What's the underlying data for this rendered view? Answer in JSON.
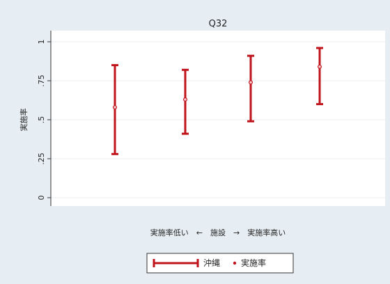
{
  "chart_data": {
    "type": "errorbar",
    "title": "Q32",
    "ylabel": "実施率",
    "xlabel": "実施率低い　←　施設　→　実施率高い",
    "ylim": [
      0,
      1
    ],
    "yticks": [
      {
        "value": 0,
        "label": "0"
      },
      {
        "value": 0.25,
        "label": ".25"
      },
      {
        "value": 0.5,
        "label": ".5"
      },
      {
        "value": 0.75,
        "label": ".75"
      },
      {
        "value": 1,
        "label": "1"
      }
    ],
    "grid": true,
    "legend_position": "bottom",
    "colors": {
      "series": "#c0141c",
      "plot_bg": "#ffffff",
      "frame_bg": "#e7eef3",
      "grid": "#e9eef1"
    },
    "points": [
      {
        "x": 1,
        "low": 0.28,
        "high": 0.85,
        "point": 0.58
      },
      {
        "x": 2,
        "low": 0.41,
        "high": 0.82,
        "point": 0.63
      },
      {
        "x": 3,
        "low": 0.49,
        "high": 0.91,
        "point": 0.74
      },
      {
        "x": 4,
        "low": 0.6,
        "high": 0.96,
        "point": 0.84
      }
    ],
    "legend": [
      {
        "name": "沖縄",
        "symbol": "range-bar"
      },
      {
        "name": "実施率",
        "symbol": "dot"
      }
    ]
  }
}
